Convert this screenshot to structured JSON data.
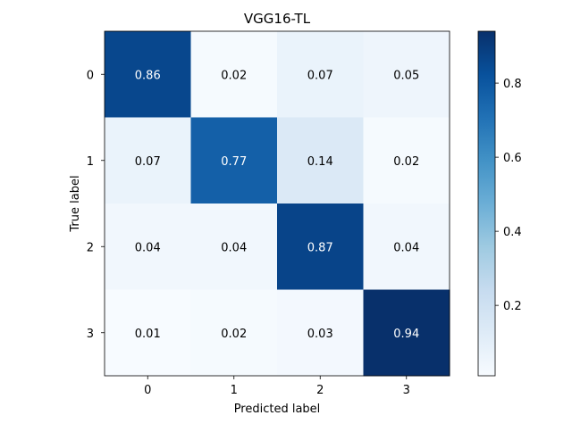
{
  "chart_data": {
    "type": "heatmap",
    "title": "VGG16-TL",
    "xlabel": "Predicted label",
    "ylabel": "True label",
    "x_categories": [
      "0",
      "1",
      "2",
      "3"
    ],
    "y_categories": [
      "0",
      "1",
      "2",
      "3"
    ],
    "values": [
      [
        0.86,
        0.02,
        0.07,
        0.05
      ],
      [
        0.07,
        0.77,
        0.14,
        0.02
      ],
      [
        0.04,
        0.04,
        0.87,
        0.04
      ],
      [
        0.01,
        0.02,
        0.03,
        0.94
      ]
    ],
    "cell_labels": [
      [
        "0.86",
        "0.02",
        "0.07",
        "0.05"
      ],
      [
        "0.07",
        "0.77",
        "0.14",
        "0.02"
      ],
      [
        "0.04",
        "0.04",
        "0.87",
        "0.04"
      ],
      [
        "0.01",
        "0.02",
        "0.03",
        "0.94"
      ]
    ],
    "colormap": "Blues",
    "colormap_colors": [
      "#f7fbff",
      "#deebf7",
      "#c6dbef",
      "#9ecae1",
      "#6baed6",
      "#4292c6",
      "#2171b5",
      "#08519c",
      "#08306b"
    ],
    "vmin": 0.01,
    "vmax": 0.94,
    "colorbar_ticks": [
      "0.2",
      "0.4",
      "0.6",
      "0.8"
    ],
    "colorbar_tick_values": [
      0.2,
      0.4,
      0.6,
      0.8
    ],
    "grid": false
  }
}
